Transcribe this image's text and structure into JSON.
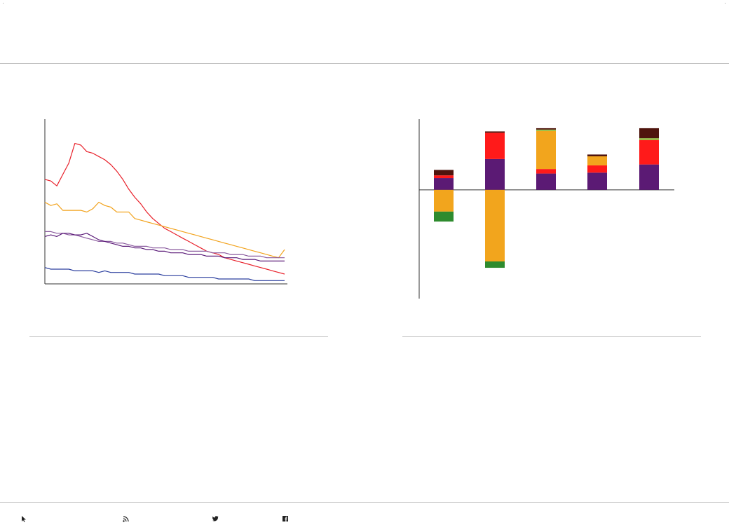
{
  "colors": {
    "rule": "#bdbdbd",
    "axis": "#333333",
    "red": "#e8202a",
    "orange": "#f2a31d",
    "purple_mid": "#8a5a9e",
    "purple_dark": "#5a1a78",
    "grey_purple": "#8c7a8c",
    "blue": "#2a3e9e",
    "bar_purple": "#5b1a74",
    "bar_red": "#ff1a1a",
    "bar_orange": "#f2a51d",
    "bar_green": "#2e8b2e",
    "bar_lightgreen": "#8fbf3f",
    "bar_brown": "#4f140d"
  },
  "footer": {
    "icons": [
      {
        "name": "cursor-icon",
        "label": ""
      },
      {
        "name": "rss-icon",
        "label": ""
      },
      {
        "name": "twitter-icon",
        "label": ""
      },
      {
        "name": "facebook-icon",
        "label": ""
      }
    ]
  },
  "chart_data": [
    {
      "type": "line",
      "title": "",
      "xlabel": "",
      "ylabel": "",
      "grid": false,
      "x": [
        0,
        1,
        2,
        3,
        4,
        5,
        6,
        7,
        8,
        9,
        10,
        11,
        12,
        13,
        14,
        15,
        16,
        17,
        18,
        19,
        20,
        21,
        22,
        23,
        24,
        25,
        26,
        27,
        28,
        29,
        30,
        31,
        32,
        33,
        34,
        35,
        36,
        37,
        38,
        39,
        40
      ],
      "ylim": [
        0,
        100
      ],
      "series": [
        {
          "color_key": "red",
          "values": [
            64,
            63,
            60,
            67,
            74,
            86,
            85,
            81,
            80,
            78,
            76,
            73,
            69,
            64,
            58,
            53,
            49,
            44,
            40,
            37,
            34,
            32,
            30,
            28,
            26,
            24,
            22,
            20,
            19,
            18,
            16,
            15,
            14,
            13,
            12,
            11,
            10,
            9,
            8,
            7,
            6
          ]
        },
        {
          "color_key": "orange",
          "values": [
            50,
            48,
            49,
            45,
            45,
            45,
            45,
            44,
            46,
            50,
            48,
            47,
            44,
            44,
            44,
            40,
            39,
            38,
            37,
            36,
            35,
            34,
            33,
            32,
            31,
            30,
            29,
            28,
            27,
            26,
            25,
            24,
            23,
            22,
            21,
            20,
            19,
            18,
            17,
            16,
            21
          ]
        },
        {
          "color_key": "purple_mid",
          "values": [
            32,
            32,
            31,
            31,
            30,
            30,
            29,
            28,
            27,
            26,
            26,
            26,
            25,
            25,
            24,
            23,
            23,
            23,
            22,
            22,
            22,
            21,
            21,
            21,
            20,
            20,
            20,
            20,
            19,
            19,
            19,
            18,
            18,
            18,
            17,
            17,
            17,
            16,
            16,
            16,
            16
          ]
        },
        {
          "color_key": "purple_dark",
          "values": [
            29,
            30,
            29,
            31,
            31,
            30,
            30,
            31,
            29,
            27,
            26,
            25,
            24,
            23,
            23,
            22,
            22,
            21,
            21,
            20,
            20,
            19,
            19,
            19,
            18,
            18,
            18,
            17,
            17,
            17,
            16,
            16,
            16,
            15,
            15,
            15,
            14,
            14,
            14,
            14,
            14
          ]
        },
        {
          "color_key": "blue",
          "values": [
            10,
            9,
            9,
            9,
            9,
            8,
            8,
            8,
            8,
            7,
            8,
            7,
            7,
            7,
            7,
            6,
            6,
            6,
            6,
            6,
            5,
            5,
            5,
            5,
            4,
            4,
            4,
            4,
            4,
            3,
            3,
            3,
            3,
            3,
            3,
            2,
            2,
            2,
            2,
            2,
            2
          ]
        }
      ]
    },
    {
      "type": "bar",
      "stacked": true,
      "title": "",
      "xlabel": "",
      "ylabel": "",
      "grid": false,
      "categories": [
        "",
        "",
        "",
        "",
        ""
      ],
      "ylim": [
        -1.2,
        0.78
      ],
      "segments": [
        [
          {
            "color_key": "bar_purple",
            "value": 0.13
          },
          {
            "color_key": "bar_red",
            "value": 0.03
          },
          {
            "color_key": "bar_brown",
            "value": 0.06
          },
          {
            "color_key": "bar_orange",
            "value": -0.24
          },
          {
            "color_key": "bar_green",
            "value": -0.11
          }
        ],
        [
          {
            "color_key": "bar_purple",
            "value": 0.34
          },
          {
            "color_key": "bar_red",
            "value": 0.29
          },
          {
            "color_key": "bar_brown",
            "value": 0.015
          },
          {
            "color_key": "bar_orange",
            "value": -0.79
          },
          {
            "color_key": "bar_green",
            "value": -0.07
          }
        ],
        [
          {
            "color_key": "bar_purple",
            "value": 0.18
          },
          {
            "color_key": "bar_red",
            "value": 0.05
          },
          {
            "color_key": "bar_orange",
            "value": 0.42
          },
          {
            "color_key": "bar_lightgreen",
            "value": 0.015
          },
          {
            "color_key": "bar_brown",
            "value": 0.015
          }
        ],
        [
          {
            "color_key": "bar_purple",
            "value": 0.19
          },
          {
            "color_key": "bar_red",
            "value": 0.08
          },
          {
            "color_key": "bar_orange",
            "value": 0.1
          },
          {
            "color_key": "bar_brown",
            "value": 0.02
          }
        ],
        [
          {
            "color_key": "bar_purple",
            "value": 0.28
          },
          {
            "color_key": "bar_red",
            "value": 0.27
          },
          {
            "color_key": "bar_lightgreen",
            "value": 0.02
          },
          {
            "color_key": "bar_brown",
            "value": 0.11
          }
        ]
      ]
    }
  ]
}
